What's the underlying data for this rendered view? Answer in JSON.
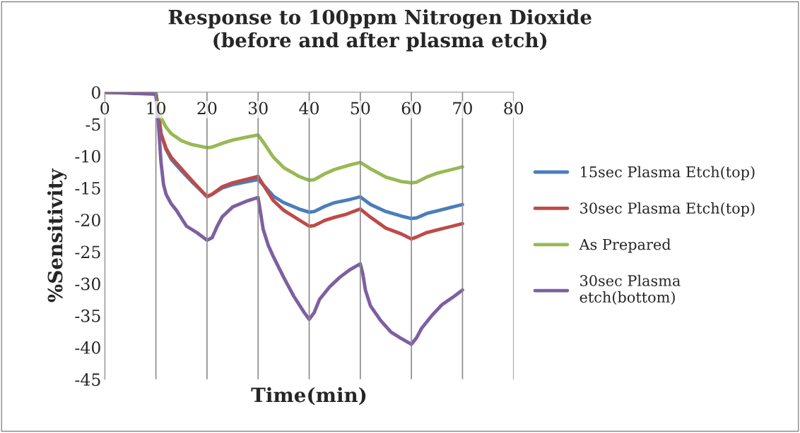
{
  "chart_data": {
    "type": "line",
    "title": "Response to 100ppm Nitrogen Dioxide\n(before and after plasma etch)",
    "xlabel": "Time(min)",
    "ylabel": "%Sensitivity",
    "xlim": [
      0,
      80
    ],
    "xticks": [
      0,
      10,
      20,
      30,
      40,
      50,
      60,
      70,
      80
    ],
    "ylim": [
      -45,
      0
    ],
    "yticks": [
      -45,
      -40,
      -35,
      -30,
      -25,
      -20,
      -15,
      -10,
      -5,
      0
    ],
    "grid": "x",
    "legend": "right",
    "marker": "none",
    "line_style": "solid",
    "series": [
      {
        "name": "15sec Plasma Etch(top)",
        "color": "#4a7ebb",
        "x": [
          0,
          10,
          11,
          12,
          13,
          15,
          17,
          20,
          21,
          23,
          25,
          28,
          30,
          31,
          33,
          35,
          38,
          40,
          41,
          43,
          45,
          48,
          50,
          52,
          55,
          58,
          60,
          61,
          63,
          65,
          68,
          70
        ],
        "values": [
          0,
          -0.2,
          -6.5,
          -9,
          -10.5,
          -12.3,
          -14,
          -16.3,
          -16,
          -15,
          -14.5,
          -14,
          -13.7,
          -14.5,
          -16.3,
          -17.3,
          -18.3,
          -18.8,
          -18.7,
          -17.9,
          -17.3,
          -16.8,
          -16.4,
          -17.6,
          -18.7,
          -19.4,
          -19.8,
          -19.7,
          -19,
          -18.6,
          -18,
          -17.6
        ]
      },
      {
        "name": "30sec Plasma Etch(top)",
        "color": "#be4b48",
        "x": [
          0,
          10,
          11,
          12,
          13,
          15,
          17,
          20,
          21,
          23,
          25,
          28,
          30,
          31,
          33,
          35,
          38,
          40,
          41,
          43,
          45,
          47,
          50,
          52,
          55,
          58,
          60,
          61,
          63,
          65,
          68,
          70
        ],
        "values": [
          0,
          -0.2,
          -6.5,
          -8.8,
          -10.2,
          -12,
          -13.8,
          -16.4,
          -16,
          -14.8,
          -14.2,
          -13.6,
          -13.2,
          -14.5,
          -17,
          -18.5,
          -20,
          -21,
          -20.9,
          -20.1,
          -19.6,
          -19.2,
          -18.3,
          -19.6,
          -21.3,
          -22.2,
          -23,
          -22.7,
          -22,
          -21.6,
          -21,
          -20.6
        ]
      },
      {
        "name": "As Prepared",
        "color": "#98b954",
        "x": [
          0,
          10,
          11,
          12,
          13,
          15,
          17,
          20,
          21,
          23,
          25,
          28,
          30,
          31,
          33,
          35,
          38,
          40,
          41,
          43,
          45,
          48,
          50,
          52,
          55,
          58,
          60,
          61,
          63,
          65,
          68,
          70
        ],
        "values": [
          0,
          -0.2,
          -4,
          -5.5,
          -6.5,
          -7.6,
          -8.2,
          -8.7,
          -8.6,
          -8,
          -7.5,
          -7,
          -6.7,
          -7.8,
          -10.2,
          -11.8,
          -13.2,
          -13.8,
          -13.7,
          -12.8,
          -12.1,
          -11.4,
          -11,
          -12,
          -13.3,
          -14,
          -14.2,
          -14.1,
          -13.3,
          -12.7,
          -12.1,
          -11.7
        ]
      },
      {
        "name": "30sec Plasma etch(bottom)",
        "color": "#7d60a0",
        "x": [
          0,
          10,
          10.5,
          11,
          11.5,
          12,
          13,
          14,
          16,
          18,
          20,
          21,
          22,
          23,
          25,
          28,
          30,
          30.5,
          31,
          32,
          33,
          35,
          37,
          39,
          40,
          41,
          42,
          44,
          46,
          48,
          50,
          50.5,
          51,
          52,
          54,
          56,
          58,
          60,
          61,
          62,
          64,
          66,
          68,
          70
        ],
        "values": [
          0,
          -0.3,
          -5,
          -11,
          -14.5,
          -16,
          -17.5,
          -18.5,
          -21,
          -22,
          -23.2,
          -22.8,
          -21,
          -19.5,
          -18,
          -17,
          -16.5,
          -19,
          -21.5,
          -24,
          -25.8,
          -29,
          -32,
          -34.5,
          -35.6,
          -34.5,
          -32.5,
          -30.5,
          -29,
          -27.8,
          -26.9,
          -28.5,
          -31,
          -33.5,
          -35.8,
          -37.6,
          -38.6,
          -39.5,
          -38.5,
          -37,
          -35,
          -33.3,
          -32.2,
          -31
        ]
      }
    ]
  }
}
